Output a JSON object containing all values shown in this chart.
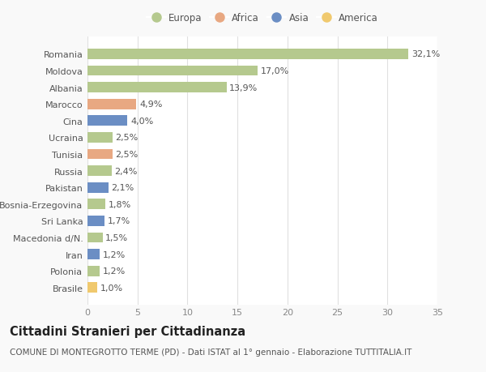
{
  "categories": [
    "Romania",
    "Moldova",
    "Albania",
    "Marocco",
    "Cina",
    "Ucraina",
    "Tunisia",
    "Russia",
    "Pakistan",
    "Bosnia-Erzegovina",
    "Sri Lanka",
    "Macedonia d/N.",
    "Iran",
    "Polonia",
    "Brasile"
  ],
  "values": [
    32.1,
    17.0,
    13.9,
    4.9,
    4.0,
    2.5,
    2.5,
    2.4,
    2.1,
    1.8,
    1.7,
    1.5,
    1.2,
    1.2,
    1.0
  ],
  "labels": [
    "32,1%",
    "17,0%",
    "13,9%",
    "4,9%",
    "4,0%",
    "2,5%",
    "2,5%",
    "2,4%",
    "2,1%",
    "1,8%",
    "1,7%",
    "1,5%",
    "1,2%",
    "1,2%",
    "1,0%"
  ],
  "continents": [
    "Europa",
    "Europa",
    "Europa",
    "Africa",
    "Asia",
    "Europa",
    "Africa",
    "Europa",
    "Asia",
    "Europa",
    "Asia",
    "Europa",
    "Asia",
    "Europa",
    "America"
  ],
  "continent_colors": {
    "Europa": "#b5c98e",
    "Africa": "#e8a882",
    "Asia": "#6b8ec4",
    "America": "#f0c96e"
  },
  "legend_order": [
    "Europa",
    "Africa",
    "Asia",
    "America"
  ],
  "title": "Cittadini Stranieri per Cittadinanza",
  "subtitle": "COMUNE DI MONTEGROTTO TERME (PD) - Dati ISTAT al 1° gennaio - Elaborazione TUTTITALIA.IT",
  "xlim": [
    0,
    35
  ],
  "xticks": [
    0,
    5,
    10,
    15,
    20,
    25,
    30,
    35
  ],
  "background_color": "#f9f9f9",
  "plot_bg_color": "#ffffff",
  "grid_color": "#e0e0e0",
  "bar_height": 0.62,
  "label_fontsize": 8,
  "tick_fontsize": 8,
  "title_fontsize": 10.5,
  "subtitle_fontsize": 7.5,
  "legend_fontsize": 8.5
}
